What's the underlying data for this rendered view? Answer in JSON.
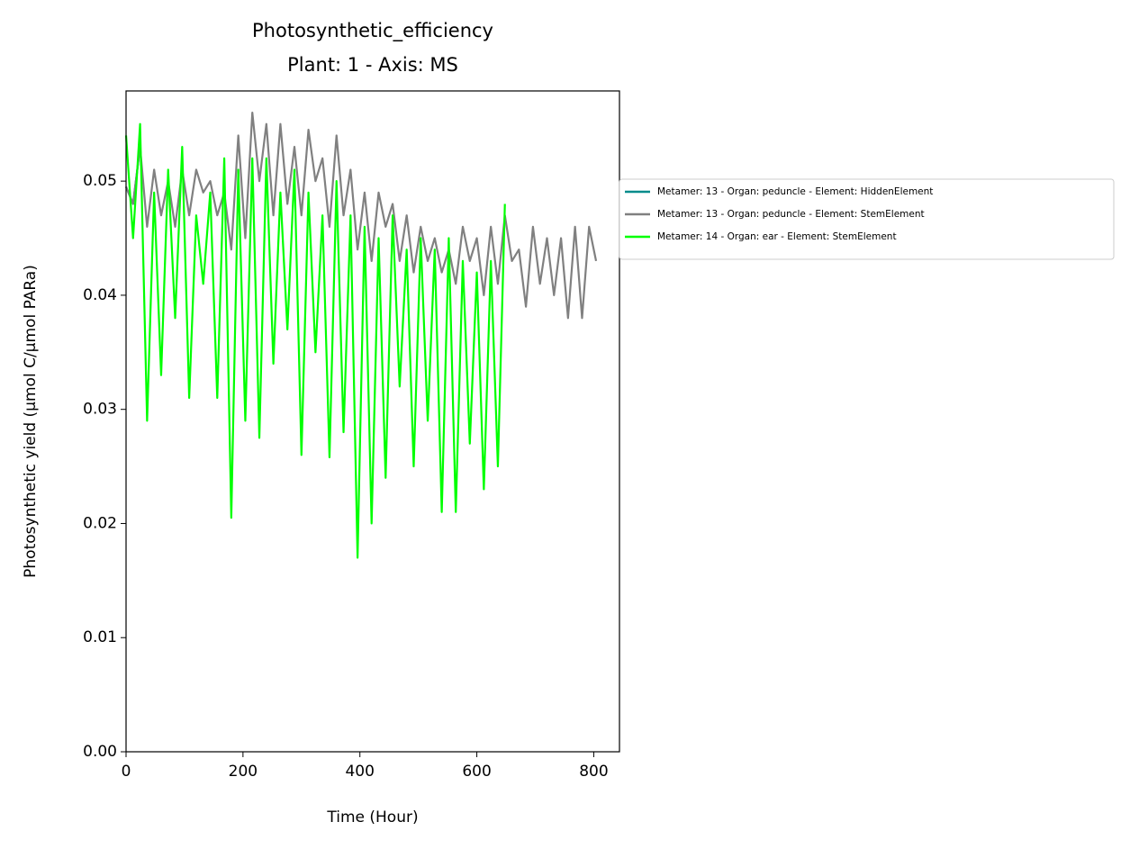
{
  "chart_data": {
    "type": "line",
    "title": "Photosynthetic_efficiency",
    "subtitle": "Plant: 1 - Axis: MS",
    "x_label": "Time (Hour)",
    "y_label": "Photosynthetic yield (µmol C/µmol PARa)",
    "xlim": [
      0,
      844
    ],
    "ylim": [
      0,
      0.0579
    ],
    "xticks": [
      0,
      200,
      400,
      600,
      800
    ],
    "yticks": [
      {
        "value": 0,
        "label": "0.00"
      },
      {
        "value": 0.01,
        "label": "0.01"
      },
      {
        "value": 0.02,
        "label": "0.02"
      },
      {
        "value": 0.03,
        "label": "0.03"
      },
      {
        "value": 0.04,
        "label": "0.04"
      },
      {
        "value": 0.05,
        "label": "0.05"
      }
    ],
    "legend": "outside-right",
    "x": [
      0,
      12,
      24,
      36,
      48,
      60,
      72,
      84,
      96,
      108,
      120,
      132,
      144,
      156,
      168,
      180,
      192,
      204,
      216,
      228,
      240,
      252,
      264,
      276,
      288,
      300,
      312,
      324,
      336,
      348,
      360,
      372,
      384,
      396,
      408,
      420,
      432,
      444,
      456,
      468,
      480,
      492,
      504,
      516,
      528,
      540,
      552,
      564,
      576,
      588,
      600,
      612,
      624,
      636,
      648,
      660,
      672,
      684,
      696,
      708,
      720,
      732,
      744,
      756,
      768,
      780,
      792,
      804
    ],
    "series": [
      {
        "name": "Metamer: 13 - Organ: peduncle - Element: HiddenElement",
        "color": "#008b8b",
        "x": [
          0,
          12,
          24
        ],
        "values": [
          0.0495,
          0.048,
          0.053
        ]
      },
      {
        "name": "Metamer: 13 - Organ: peduncle - Element: StemElement",
        "color": "#808080",
        "values": [
          0.0495,
          0.048,
          0.053,
          0.046,
          0.051,
          0.047,
          0.05,
          0.046,
          0.051,
          0.047,
          0.051,
          0.049,
          0.05,
          0.047,
          0.049,
          0.044,
          0.054,
          0.045,
          0.056,
          0.05,
          0.055,
          0.047,
          0.055,
          0.048,
          0.053,
          0.047,
          0.0545,
          0.05,
          0.052,
          0.046,
          0.054,
          0.047,
          0.051,
          0.044,
          0.049,
          0.043,
          0.049,
          0.046,
          0.048,
          0.043,
          0.047,
          0.042,
          0.046,
          0.043,
          0.045,
          0.042,
          0.044,
          0.041,
          0.046,
          0.043,
          0.045,
          0.04,
          0.046,
          0.041,
          0.047,
          0.043,
          0.044,
          0.039,
          0.046,
          0.041,
          0.045,
          0.04,
          0.045,
          0.038,
          0.046,
          0.038,
          0.046,
          0.043
        ]
      },
      {
        "name": "Metamer: 14 - Organ: ear - Element: StemElement",
        "color": "#00ff00",
        "values": [
          0.054,
          0.045,
          0.055,
          0.029,
          0.049,
          0.033,
          0.051,
          0.038,
          0.053,
          0.031,
          0.047,
          0.041,
          0.049,
          0.031,
          0.052,
          0.0205,
          0.051,
          0.029,
          0.052,
          0.0275,
          0.052,
          0.034,
          0.049,
          0.037,
          0.051,
          0.026,
          0.049,
          0.035,
          0.047,
          0.0258,
          0.05,
          0.028,
          0.047,
          0.017,
          0.046,
          0.02,
          0.045,
          0.024,
          0.047,
          0.032,
          0.044,
          0.025,
          0.045,
          0.029,
          0.044,
          0.021,
          0.045,
          0.021,
          0.043,
          0.027,
          0.042,
          0.023,
          0.043,
          0.025,
          0.048,
          null,
          null,
          null,
          null,
          null,
          null,
          null,
          null,
          null,
          null,
          null,
          null,
          null
        ]
      }
    ]
  }
}
